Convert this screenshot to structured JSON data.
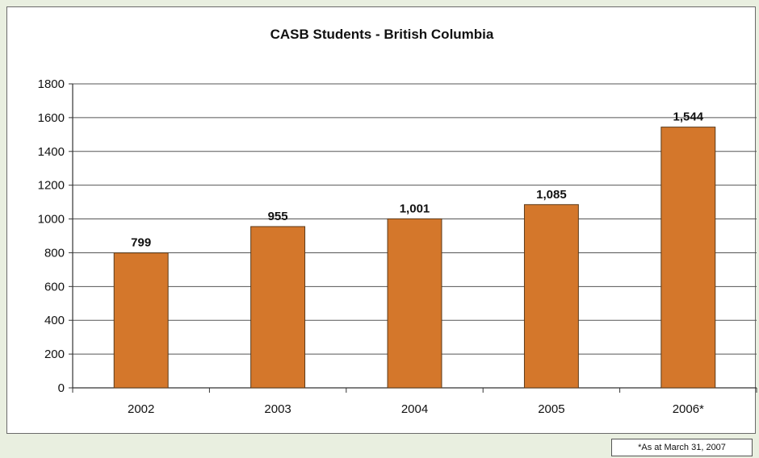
{
  "chart_data": {
    "type": "bar",
    "title": "CASB Students - British Columbia",
    "xlabel": "",
    "ylabel": "",
    "categories": [
      "2002",
      "2003",
      "2004",
      "2005",
      "2006*"
    ],
    "values": [
      799,
      955,
      1001,
      1085,
      1544
    ],
    "data_labels": [
      "799",
      "955",
      "1,001",
      "1,085",
      "1,544"
    ],
    "ylim": [
      0,
      1800
    ],
    "yticks": [
      0,
      200,
      400,
      600,
      800,
      1000,
      1200,
      1400,
      1600,
      1800
    ],
    "grid": true,
    "legend": "none",
    "bar_color": "#d4772b",
    "footnote": "*As at March 31, 2007"
  }
}
